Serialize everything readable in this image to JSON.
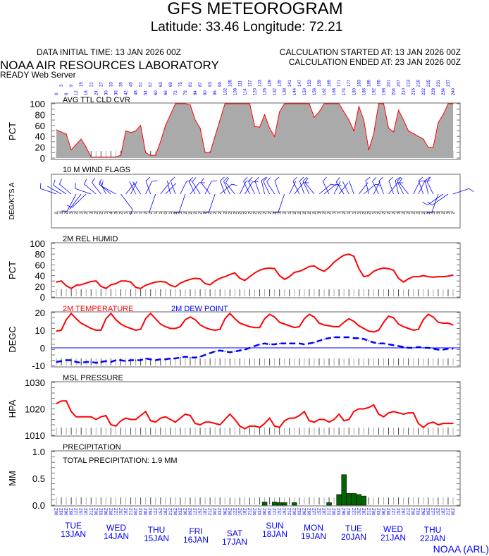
{
  "header": {
    "title": "GFS METEOROGRAM",
    "location": "Latitude: 33.46 Longitude:  72.21",
    "data_initial_time": "DATA INITIAL TIME: 13 JAN 2026 00Z",
    "calc_started": "CALCULATION STARTED AT: 13 JAN 2026 00Z",
    "calc_ended": "CALCULATION ENDED AT: 23 JAN 2026 00Z",
    "org": "NOAA AIR RESOURCES LABORATORY",
    "server": "READY Web Server",
    "footer": "NOAA (ARL)"
  },
  "colors": {
    "temp": "#ff0000",
    "dew": "#0000ff",
    "cloud_fill": "#aaaaaa",
    "precip": "#006400",
    "axis_text": "#0000ff"
  },
  "chart_data": [
    {
      "type": "area",
      "key": "cloud",
      "title": "AVG TTL CLD CVR",
      "ylabel": "PCT",
      "ylim": [
        0,
        100
      ],
      "yticks": [
        "100",
        "80",
        "60",
        "40",
        "20",
        "0"
      ],
      "x_step_hours": 3,
      "values": [
        52,
        48,
        44,
        15,
        25,
        35,
        20,
        2,
        2,
        2,
        2,
        2,
        2,
        5,
        50,
        47,
        50,
        60,
        10,
        5,
        5,
        30,
        60,
        80,
        100,
        100,
        100,
        98,
        70,
        55,
        10,
        10,
        40,
        70,
        100,
        100,
        100,
        100,
        100,
        100,
        58,
        57,
        80,
        55,
        40,
        85,
        100,
        100,
        100,
        100,
        100,
        100,
        75,
        85,
        100,
        100,
        100,
        100,
        85,
        70,
        50,
        95,
        70,
        15,
        45,
        100,
        100,
        55,
        48,
        88,
        70,
        50,
        45,
        40,
        35,
        20,
        20,
        65,
        80,
        100,
        100
      ]
    },
    {
      "type": "wind",
      "key": "wind",
      "title": "10 M  WIND FLAGS",
      "ylabel": "DEG/KTS  A",
      "x_step_hours": 3,
      "directions_deg": [
        300,
        310,
        315,
        320,
        210,
        220,
        230,
        300,
        320,
        330,
        340,
        320,
        310,
        140,
        30,
        20,
        340,
        335,
        20,
        345,
        200,
        30,
        35,
        350,
        345,
        20,
        200,
        30,
        340,
        335,
        20,
        330,
        200,
        40,
        345,
        340,
        330,
        20,
        25,
        340,
        340,
        345,
        350,
        340,
        335,
        345,
        200,
        20,
        30,
        340,
        345,
        340,
        330,
        40,
        40,
        340,
        20,
        30,
        335,
        340,
        345,
        30,
        40,
        350,
        20,
        340,
        345,
        30,
        345,
        350,
        340,
        330,
        20,
        20,
        345,
        350,
        340,
        200,
        240,
        240,
        60
      ],
      "speeds_kt": [
        2,
        1,
        2,
        3,
        2,
        1,
        2,
        3,
        2,
        2,
        1,
        4,
        3,
        2,
        1,
        0,
        1,
        1,
        2,
        2,
        1,
        1,
        0,
        1,
        2,
        3,
        2,
        2,
        2,
        2,
        2,
        2,
        2,
        2,
        2,
        2,
        2,
        2,
        2,
        2,
        2,
        2,
        2,
        2,
        2,
        3,
        2,
        1,
        2,
        2,
        2,
        2,
        2,
        3,
        2,
        2,
        1,
        1,
        2,
        1,
        1,
        1,
        2,
        2,
        1,
        2,
        2,
        2,
        2,
        3,
        2,
        2,
        2,
        2,
        2,
        2,
        3,
        3,
        2,
        3,
        2
      ]
    },
    {
      "type": "line",
      "key": "rh",
      "title": "2M REL HUMID",
      "ylabel": "PCT",
      "ylim": [
        0,
        100
      ],
      "yticks": [
        "100",
        "80",
        "60",
        "40",
        "20",
        "0"
      ],
      "x_step_hours": 3,
      "values": [
        28,
        30,
        21,
        16,
        22,
        23,
        26,
        29,
        30,
        20,
        16,
        23,
        25,
        30,
        30,
        28,
        18,
        16,
        22,
        25,
        28,
        29,
        28,
        22,
        19,
        26,
        30,
        33,
        35,
        34,
        25,
        23,
        30,
        35,
        38,
        42,
        45,
        35,
        31,
        38,
        45,
        50,
        53,
        54,
        53,
        40,
        33,
        38,
        46,
        48,
        52,
        57,
        58,
        52,
        48,
        55,
        65,
        72,
        78,
        80,
        76,
        53,
        38,
        40,
        48,
        52,
        54,
        53,
        50,
        35,
        28,
        34,
        38,
        38,
        40,
        38,
        37,
        38,
        38,
        39,
        41
      ]
    },
    {
      "type": "line",
      "key": "temp",
      "ylabel": "DEGC",
      "ylim": [
        -10,
        20
      ],
      "yticks": [
        "20",
        "10",
        "0",
        "-10"
      ],
      "x_step_hours": 3,
      "series": [
        {
          "name": "2M TEMPERATURE",
          "values": [
            9.5,
            10,
            16,
            19.5,
            16.5,
            14,
            12.5,
            11,
            10,
            10,
            16.5,
            19.5,
            16,
            13.5,
            12,
            11,
            10,
            10.5,
            16.5,
            19.5,
            16.5,
            13.5,
            12,
            11,
            11,
            12,
            16,
            17.5,
            16,
            13,
            11.5,
            10.5,
            10,
            10.5,
            16.5,
            19.5,
            16.5,
            14,
            13,
            12,
            11.5,
            11.5,
            16.5,
            19,
            17.5,
            14.5,
            13.5,
            12.5,
            11.5,
            12,
            16.5,
            19,
            17.5,
            14,
            13,
            12.5,
            12,
            12,
            14.5,
            16.5,
            15,
            12.5,
            11,
            9.5,
            9,
            10,
            14.5,
            18,
            17,
            13.5,
            12,
            11,
            10,
            10.5,
            16,
            19,
            17.5,
            14.5,
            14,
            14,
            13
          ]
        },
        {
          "name": "2M   DEW POINT",
          "values": [
            -8,
            -7.5,
            -7,
            -7,
            -8,
            -8.5,
            -8,
            -8,
            -8.5,
            -8,
            -7.5,
            -8,
            -7,
            -7,
            -7.5,
            -7,
            -7,
            -7,
            -6,
            -6.5,
            -7,
            -6.5,
            -6.5,
            -6,
            -6,
            -5.5,
            -5,
            -5.5,
            -5.5,
            -5,
            -4,
            -3,
            -2,
            -1.5,
            -2,
            -2.5,
            -2,
            -1.5,
            -1,
            0,
            1,
            2,
            2.5,
            2,
            2,
            2.5,
            2.5,
            2.5,
            2.5,
            2.5,
            2,
            2.5,
            3,
            4,
            5,
            5.5,
            6,
            6,
            6,
            6,
            5.5,
            5.5,
            5,
            4,
            3,
            2.5,
            2.5,
            2,
            1.5,
            1,
            0.5,
            0,
            0,
            0.5,
            0,
            0,
            -0.5,
            -1,
            -1,
            -0.5,
            -0.5
          ]
        }
      ]
    },
    {
      "type": "line",
      "key": "pres",
      "title": "MSL PRESSURE",
      "ylabel": "HPA",
      "ylim": [
        1010,
        1030
      ],
      "yticks": [
        "1030",
        "1020",
        "1010"
      ],
      "x_step_hours": 3,
      "values": [
        1022,
        1023,
        1023,
        1019,
        1017,
        1017,
        1017,
        1017,
        1016,
        1017,
        1017.5,
        1014,
        1013.5,
        1015.5,
        1016.5,
        1016,
        1016,
        1017.5,
        1019,
        1015.5,
        1015,
        1016.5,
        1017,
        1016,
        1015,
        1016.5,
        1018,
        1017.5,
        1014.5,
        1014,
        1015,
        1015,
        1014.5,
        1014,
        1016,
        1018,
        1016,
        1013.5,
        1012.5,
        1013.5,
        1013.5,
        1013,
        1014.5,
        1016.5,
        1013.5,
        1013,
        1015.5,
        1016.5,
        1016.5,
        1017.5,
        1019,
        1015.5,
        1015,
        1016,
        1016,
        1015,
        1016,
        1018,
        1015.5,
        1016,
        1019,
        1020,
        1020,
        1020.5,
        1021.5,
        1018,
        1017,
        1018.5,
        1019,
        1018.5,
        1018,
        1018.5,
        1018.5,
        1014.5,
        1013,
        1014.5,
        1015,
        1014,
        1014.5,
        1014.5,
        1014.5
      ]
    },
    {
      "type": "bar",
      "key": "precip",
      "title": "PRECIPITATION",
      "ylabel": "MM",
      "ylim": [
        0,
        1
      ],
      "yticks": [
        "1.0",
        "0.5",
        "0.0"
      ],
      "total_label": "TOTAL PRECIPITATION:   1.9 MM",
      "bars": [
        [
          126,
          0.06
        ],
        [
          132,
          0.06
        ],
        [
          135,
          0.05
        ],
        [
          138,
          0.05
        ],
        [
          144,
          0.05
        ],
        [
          165,
          0.05
        ],
        [
          171,
          0.2
        ],
        [
          174,
          0.57
        ],
        [
          177,
          0.22
        ],
        [
          180,
          0.22
        ],
        [
          183,
          0.2
        ],
        [
          186,
          0.17
        ]
      ]
    }
  ],
  "x_axis": {
    "forecast_hours": [
      "0",
      "3",
      "6",
      "9",
      "12",
      "15",
      "18",
      "21",
      "24",
      "27",
      "30",
      "33",
      "36",
      "39",
      "42",
      "45",
      "48",
      "51",
      "54",
      "57",
      "60",
      "63",
      "66",
      "69",
      "72",
      "75",
      "78",
      "81",
      "84",
      "87",
      "90",
      "93",
      "96",
      "99",
      "102",
      "105",
      "108",
      "111",
      "114",
      "117",
      "120",
      "123",
      "126",
      "129",
      "132",
      "135",
      "138",
      "141",
      "144",
      "147",
      "150",
      "153",
      "156",
      "159",
      "162",
      "165",
      "168",
      "171",
      "174",
      "177",
      "180",
      "183",
      "186",
      "189",
      "192",
      "195",
      "198",
      "201",
      "204",
      "207",
      "210",
      "213",
      "216",
      "219",
      "222",
      "225",
      "228",
      "231",
      "234",
      "237",
      "240"
    ],
    "utc_cycle": [
      "00Z",
      "03Z",
      "06Z",
      "09Z",
      "12Z",
      "15Z",
      "18Z",
      "21Z"
    ],
    "days": [
      {
        "dow": "TUE",
        "date": "13JAN"
      },
      {
        "dow": "WED",
        "date": "14JAN"
      },
      {
        "dow": "THU",
        "date": "15JAN"
      },
      {
        "dow": "FRI",
        "date": "16JAN"
      },
      {
        "dow": "SAT",
        "date": "17JAN"
      },
      {
        "dow": "SUN",
        "date": "18JAN"
      },
      {
        "dow": "MON",
        "date": "19JAN"
      },
      {
        "dow": "TUE",
        "date": "20JAN"
      },
      {
        "dow": "WED",
        "date": "21JAN"
      },
      {
        "dow": "THU",
        "date": "22JAN"
      }
    ]
  }
}
